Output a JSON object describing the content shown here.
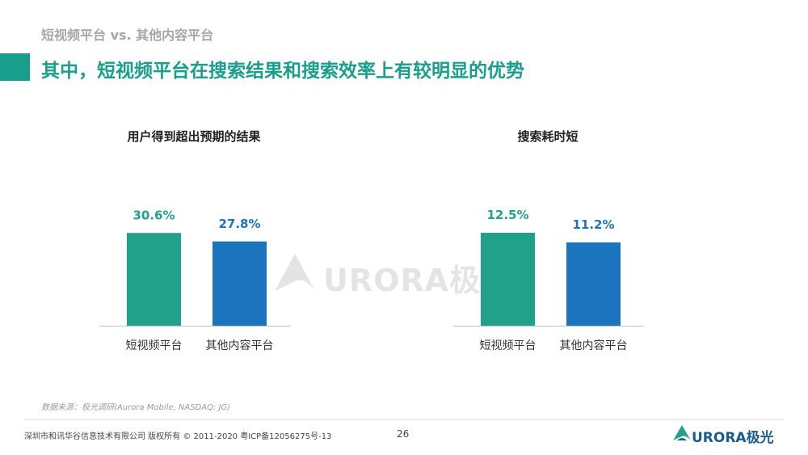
{
  "header": {
    "subtitle": "短视频平台 vs. 其他内容平台",
    "headline": "其中，短视频平台在搜索结果和搜索效率上有较明显的优势"
  },
  "watermark": {
    "text": "URORA极光"
  },
  "colors": {
    "accent": "#1a9e8c",
    "teal": "#21a08a",
    "blue": "#1b74bd"
  },
  "chart_data": [
    {
      "type": "bar",
      "title": "用户得到超出预期的结果",
      "categories": [
        "短视频平台",
        "其他内容平台"
      ],
      "values": [
        30.6,
        27.8
      ],
      "value_labels": [
        "30.6%",
        "27.8%"
      ],
      "colors": [
        "#21a08a",
        "#1b74bd"
      ],
      "ylim": [
        0,
        40
      ],
      "grid": false,
      "legend": "none"
    },
    {
      "type": "bar",
      "title": "搜索耗时短",
      "categories": [
        "短视频平台",
        "其他内容平台"
      ],
      "values": [
        12.5,
        11.2
      ],
      "value_labels": [
        "12.5%",
        "11.2%"
      ],
      "colors": [
        "#21a08a",
        "#1b74bd"
      ],
      "ylim": [
        0,
        16.3
      ],
      "grid": false,
      "legend": "none"
    }
  ],
  "footer": {
    "source": "数据来源：极光调研(Aurora Mobile, NASDAQ: JG)",
    "copyright": "深圳市和讯华谷信息技术有限公司 版权所有 © 2011-2020 粤ICP备12056275号-13",
    "page_number": "26",
    "logo_text": "URORA极光"
  }
}
